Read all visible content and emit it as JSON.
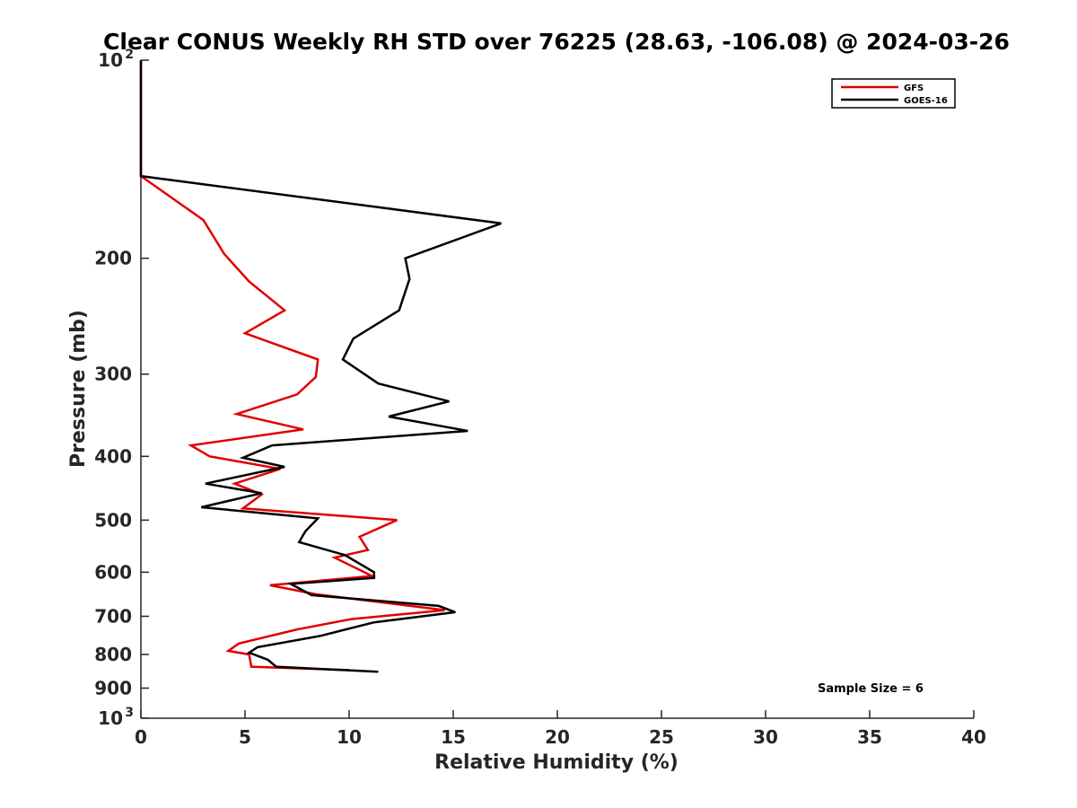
{
  "chart_data": {
    "type": "line",
    "title": "Clear CONUS Weekly RH STD over 76225 (28.63, -106.08) @ 2024-03-26",
    "xlabel": "Relative Humidity (%)",
    "ylabel": "Pressure (mb)",
    "xlim": [
      0,
      40
    ],
    "ylim": [
      100,
      1000
    ],
    "yscale": "log",
    "y_reversed": true,
    "x_ticks": [
      0,
      5,
      10,
      15,
      20,
      25,
      30,
      35,
      40
    ],
    "x_tick_labels": [
      "0",
      "5",
      "10",
      "15",
      "20",
      "25",
      "30",
      "35",
      "40"
    ],
    "y_ticks": [
      200,
      300,
      400,
      500,
      600,
      700,
      800,
      900
    ],
    "y_tick_labels": [
      "200",
      "300",
      "400",
      "500",
      "600",
      "700",
      "800",
      "900"
    ],
    "y_end_labels": {
      "top": {
        "base": "10",
        "exp": "2"
      },
      "bottom": {
        "base": "10",
        "exp": "3"
      }
    },
    "grid": false,
    "legend_position": "top-right",
    "annotation": "Sample Size = 6",
    "series": [
      {
        "name": "GFS",
        "color": "#e00000",
        "points": [
          [
            0,
            100
          ],
          [
            0,
            150
          ],
          [
            3,
            175
          ],
          [
            4,
            197
          ],
          [
            5.2,
            217
          ],
          [
            6.9,
            240
          ],
          [
            5.0,
            260
          ],
          [
            8.5,
            285
          ],
          [
            8.4,
            303
          ],
          [
            7.5,
            322
          ],
          [
            4.6,
            345
          ],
          [
            7.8,
            364
          ],
          [
            2.4,
            385
          ],
          [
            3.3,
            400
          ],
          [
            6.7,
            418
          ],
          [
            4.5,
            440
          ],
          [
            5.8,
            457
          ],
          [
            4.9,
            480
          ],
          [
            12.3,
            500
          ],
          [
            10.5,
            530
          ],
          [
            10.9,
            555
          ],
          [
            9.3,
            570
          ],
          [
            11.1,
            608
          ],
          [
            6.2,
            628
          ],
          [
            8.4,
            648
          ],
          [
            14.6,
            685
          ],
          [
            10.1,
            707
          ],
          [
            7.5,
            733
          ],
          [
            4.7,
            770
          ],
          [
            4.2,
            790
          ],
          [
            5.2,
            800
          ],
          [
            5.3,
            835
          ],
          [
            10.0,
            845
          ]
        ]
      },
      {
        "name": "GOES-16",
        "color": "#000000",
        "points": [
          [
            0,
            100
          ],
          [
            0,
            150
          ],
          [
            17.3,
            177
          ],
          [
            12.7,
            200
          ],
          [
            12.9,
            215
          ],
          [
            12.4,
            240
          ],
          [
            10.2,
            265
          ],
          [
            9.7,
            285
          ],
          [
            11.4,
            310
          ],
          [
            14.8,
            330
          ],
          [
            11.9,
            348
          ],
          [
            15.7,
            366
          ],
          [
            6.3,
            385
          ],
          [
            4.9,
            402
          ],
          [
            6.9,
            415
          ],
          [
            3.1,
            440
          ],
          [
            5.8,
            455
          ],
          [
            2.9,
            478
          ],
          [
            8.5,
            497
          ],
          [
            7.9,
            520
          ],
          [
            7.6,
            540
          ],
          [
            9.8,
            565
          ],
          [
            11.2,
            600
          ],
          [
            11.2,
            612
          ],
          [
            7.2,
            625
          ],
          [
            8.2,
            650
          ],
          [
            14.3,
            675
          ],
          [
            15.1,
            690
          ],
          [
            11.2,
            715
          ],
          [
            8.6,
            750
          ],
          [
            5.6,
            780
          ],
          [
            5.2,
            795
          ],
          [
            6.1,
            815
          ],
          [
            6.5,
            835
          ],
          [
            11.4,
            850
          ]
        ]
      }
    ]
  }
}
